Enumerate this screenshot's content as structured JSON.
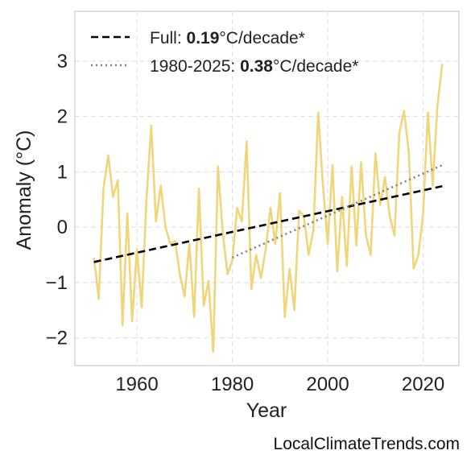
{
  "chart_data": {
    "type": "line",
    "title": "",
    "xlabel": "Year",
    "ylabel": "Anomaly (°C)",
    "xlim": [
      1947,
      2027.5
    ],
    "ylim": [
      -2.5,
      3.9
    ],
    "x_ticks": [
      1960,
      1980,
      2000,
      2020
    ],
    "x_tick_labels": [
      "1960",
      "1980",
      "2000",
      "2020"
    ],
    "y_ticks": [
      -2,
      -1,
      0,
      1,
      2,
      3
    ],
    "y_tick_labels": [
      "−2",
      "−1",
      "0",
      "1",
      "2",
      "3"
    ],
    "grid": true,
    "legend_position": "top-left",
    "series": [
      {
        "color": "#f0d67a",
        "style": "solid",
        "x": [
          1951,
          1952,
          1953,
          1954,
          1955,
          1956,
          1957,
          1958,
          1959,
          1960,
          1961,
          1962,
          1963,
          1964,
          1965,
          1966,
          1967,
          1968,
          1969,
          1970,
          1971,
          1972,
          1973,
          1974,
          1975,
          1976,
          1977,
          1978,
          1979,
          1980,
          1981,
          1982,
          1983,
          1984,
          1985,
          1986,
          1987,
          1988,
          1989,
          1990,
          1991,
          1992,
          1993,
          1994,
          1995,
          1996,
          1997,
          1998,
          1999,
          2000,
          2001,
          2002,
          2003,
          2004,
          2005,
          2006,
          2007,
          2008,
          2009,
          2010,
          2011,
          2012,
          2013,
          2014,
          2015,
          2016,
          2017,
          2018,
          2019,
          2020,
          2021,
          2022,
          2023,
          2024
        ],
        "values": [
          -0.55,
          -1.3,
          0.7,
          1.3,
          0.55,
          0.85,
          -1.77,
          0.25,
          -1.7,
          -0.4,
          -1.45,
          0.5,
          1.83,
          0.1,
          0.75,
          0.0,
          -0.3,
          -0.25,
          -0.85,
          -1.25,
          -0.3,
          -1.62,
          0.7,
          -1.42,
          -0.97,
          -2.25,
          1.1,
          -0.1,
          -0.85,
          -0.6,
          0.35,
          0.1,
          1.55,
          -1.12,
          -0.5,
          -0.92,
          -0.4,
          0.35,
          -0.3,
          0.62,
          -1.62,
          -0.75,
          -1.5,
          0.3,
          0.2,
          -0.5,
          -0.05,
          2.07,
          0.75,
          -0.3,
          1.12,
          -0.8,
          0.55,
          -0.7,
          1.1,
          -0.33,
          1.17,
          -0.15,
          -0.5,
          1.33,
          0.4,
          0.9,
          0.2,
          -0.15,
          1.7,
          2.1,
          1.35,
          -0.75,
          -0.5,
          0.25,
          2.07,
          0.75,
          2.2,
          2.95
        ]
      },
      {
        "name": "Full",
        "color": "#000000",
        "style": "dashed",
        "x": [
          1951,
          2024
        ],
        "values": [
          -0.63,
          0.74
        ]
      },
      {
        "name": "1980-2025",
        "color": "#808080",
        "style": "dotted",
        "x": [
          1980,
          2024
        ],
        "values": [
          -0.55,
          1.12
        ]
      }
    ],
    "legend": [
      {
        "label_prefix": "Full: ",
        "label_value": "0.19",
        "label_suffix": "°C/decade*",
        "style": "dashed",
        "color": "#000000"
      },
      {
        "label_prefix": "1980-2025: ",
        "label_value": "0.38",
        "label_suffix": "°C/decade*",
        "style": "dotted",
        "color": "#808080"
      }
    ]
  },
  "credit": "LocalClimateTrends.com"
}
